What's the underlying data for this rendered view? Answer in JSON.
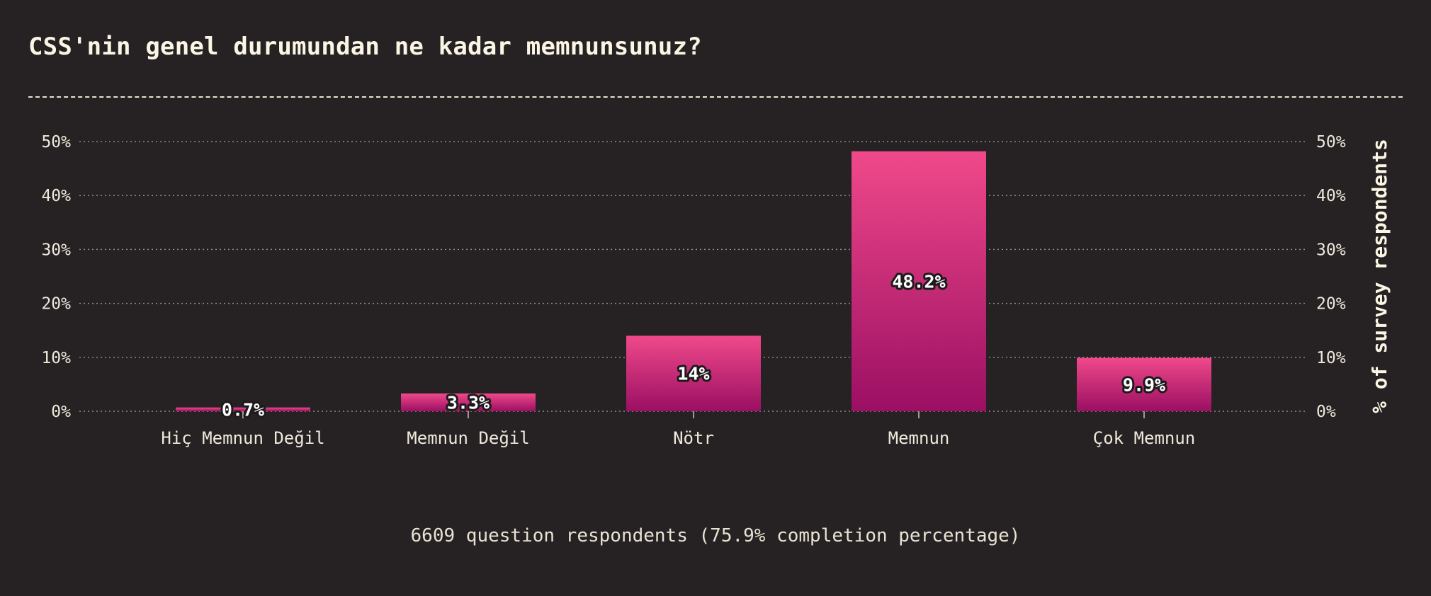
{
  "chart_data": {
    "type": "bar",
    "title": "CSS'nin genel durumundan ne kadar memnunsunuz?",
    "categories": [
      "Hiç Memnun Değil",
      "Memnun Değil",
      "Nötr",
      "Memnun",
      "Çok Memnun"
    ],
    "values": [
      0.7,
      3.3,
      14,
      48.2,
      9.9
    ],
    "value_labels": [
      "0.7%",
      "3.3%",
      "14%",
      "48.2%",
      "9.9%"
    ],
    "ylabel": "% of survey respondents",
    "ylim": [
      0,
      50
    ],
    "yticks": [
      0,
      10,
      20,
      30,
      40,
      50
    ],
    "ytick_labels": [
      "0%",
      "10%",
      "20%",
      "30%",
      "40%",
      "50%"
    ],
    "grid": true,
    "bar_color_top": "#f0498a",
    "bar_color_bottom": "#9b0f63",
    "footer": "6609 question respondents (75.9% completion percentage)"
  }
}
